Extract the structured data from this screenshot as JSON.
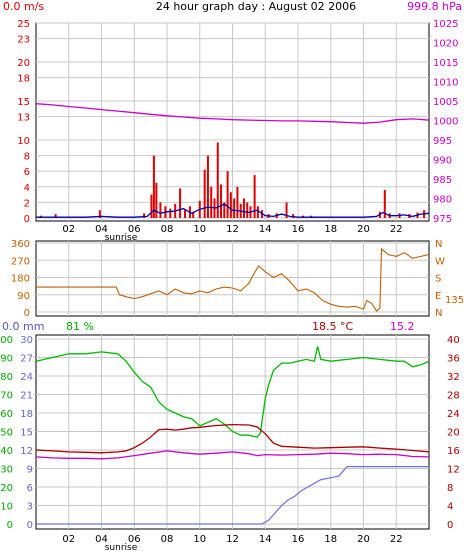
{
  "header": {
    "wind_speed": "0.0 m/s",
    "title": "24 hour graph day : August 02 2006",
    "pressure": "999.8 hPa"
  },
  "panel2": {
    "direction_value": "135",
    "compass": [
      "N",
      "W",
      "S",
      "E",
      "N"
    ]
  },
  "panel3": {
    "rain_label": "0.0 mm",
    "humidity_label": "81 %",
    "temperature_label": "18.5 °C",
    "dewpoint_label": "15.2"
  },
  "x_axis": {
    "ticks": [
      "02",
      "04",
      "06",
      "08",
      "10",
      "12",
      "14",
      "16",
      "18",
      "20",
      "22"
    ],
    "tick_hours": [
      2,
      4,
      6,
      8,
      10,
      12,
      14,
      16,
      18,
      20,
      22
    ],
    "range": [
      0,
      24
    ],
    "sunrise_label": "sunrise",
    "sunrise_hour": 5.6
  },
  "colors": {
    "wind_speed": "#dd0000",
    "wind_avg": "#0000aa",
    "pressure": "#cc00cc",
    "direction": "#c06000",
    "rain": "#7070dd",
    "humidity": "#00bb00",
    "temperature": "#aa0000",
    "dewpoint": "#cc00cc",
    "grid": "#c8c8c8"
  },
  "chart_data": [
    {
      "type": "line",
      "panel": "wind and pressure",
      "y_left_ticks": [
        0,
        2,
        4,
        6,
        8,
        10,
        13,
        15,
        18,
        20,
        23,
        25
      ],
      "y_right_ticks": [
        975,
        980,
        985,
        990,
        995,
        1000,
        1005,
        1010,
        1015,
        1020,
        1025
      ],
      "series": [
        {
          "name": "pressure",
          "axis": "right",
          "x": [
            0,
            1,
            2,
            3,
            4,
            5,
            6,
            7,
            8,
            9,
            10,
            11,
            12,
            13,
            14,
            15,
            16,
            17,
            18,
            19,
            20,
            21,
            22,
            23,
            24
          ],
          "y": [
            1004.3,
            1004.0,
            1003.6,
            1003.2,
            1002.8,
            1002.4,
            1002.0,
            1001.6,
            1001.2,
            1000.9,
            1000.6,
            1000.4,
            1000.2,
            1000.1,
            1000.0,
            999.9,
            999.9,
            999.8,
            999.7,
            999.5,
            999.3,
            999.6,
            1000.2,
            1000.4,
            1000.1
          ]
        },
        {
          "name": "wind gust",
          "axis": "left",
          "bars": [
            [
              0.3,
              0.3
            ],
            [
              1.2,
              0.5
            ],
            [
              3.9,
              1.0
            ],
            [
              6.6,
              0.6
            ],
            [
              7.05,
              3.0
            ],
            [
              7.2,
              8.0
            ],
            [
              7.35,
              4.5
            ],
            [
              7.6,
              2.0
            ],
            [
              7.9,
              1.5
            ],
            [
              8.2,
              1.2
            ],
            [
              8.5,
              1.8
            ],
            [
              8.8,
              3.8
            ],
            [
              9.1,
              1.0
            ],
            [
              9.4,
              1.5
            ],
            [
              9.6,
              0.8
            ],
            [
              10.0,
              2.2
            ],
            [
              10.3,
              6.2
            ],
            [
              10.5,
              8.0
            ],
            [
              10.7,
              4.0
            ],
            [
              10.9,
              2.5
            ],
            [
              11.1,
              9.7
            ],
            [
              11.3,
              4.3
            ],
            [
              11.5,
              2.0
            ],
            [
              11.7,
              6.0
            ],
            [
              11.9,
              3.3
            ],
            [
              12.1,
              2.5
            ],
            [
              12.3,
              4.0
            ],
            [
              12.5,
              1.8
            ],
            [
              12.7,
              2.5
            ],
            [
              12.9,
              2.0
            ],
            [
              13.1,
              1.5
            ],
            [
              13.35,
              5.5
            ],
            [
              13.55,
              1.5
            ],
            [
              13.8,
              1.0
            ],
            [
              14.2,
              0.5
            ],
            [
              14.7,
              0.6
            ],
            [
              15.3,
              2.0
            ],
            [
              15.7,
              0.5
            ],
            [
              16.3,
              0.3
            ],
            [
              16.8,
              0.3
            ],
            [
              21.0,
              0.8
            ],
            [
              21.3,
              3.6
            ],
            [
              21.6,
              0.6
            ],
            [
              22.2,
              0.6
            ],
            [
              22.8,
              0.5
            ],
            [
              23.3,
              0.7
            ],
            [
              23.7,
              1.0
            ]
          ]
        },
        {
          "name": "wind average",
          "axis": "left",
          "x": [
            0,
            1,
            2,
            3,
            4,
            5,
            6,
            6.8,
            7.2,
            7.6,
            8,
            8.5,
            9,
            9.5,
            10,
            10.5,
            11,
            11.5,
            12,
            12.5,
            13,
            13.5,
            14,
            14.5,
            15,
            15.5,
            16,
            17,
            18,
            19,
            20,
            20.8,
            21.2,
            21.6,
            22,
            22.5,
            23,
            23.5,
            24
          ],
          "y": [
            0.1,
            0.1,
            0.1,
            0.1,
            0.2,
            0.1,
            0.1,
            0.2,
            1.0,
            0.6,
            0.8,
            0.9,
            1.2,
            0.6,
            1.1,
            1.4,
            1.3,
            1.8,
            1.0,
            0.9,
            0.7,
            1.0,
            0.3,
            0.2,
            0.5,
            0.2,
            0.1,
            0.1,
            0.1,
            0.1,
            0.1,
            0.2,
            0.7,
            0.3,
            0.3,
            0.4,
            0.2,
            0.5,
            0.6
          ]
        }
      ]
    },
    {
      "type": "line",
      "panel": "wind direction",
      "y_ticks": [
        0,
        90,
        180,
        270,
        360
      ],
      "ylim": [
        0,
        360
      ],
      "series": [
        {
          "name": "direction",
          "x": [
            0,
            1,
            2,
            3,
            4,
            4.9,
            5.1,
            5.5,
            6,
            6.5,
            7,
            7.5,
            8,
            8.5,
            9,
            9.5,
            10,
            10.5,
            11,
            11.5,
            12,
            12.5,
            13,
            13.3,
            13.6,
            14,
            14.5,
            15,
            15.5,
            16,
            16.5,
            17,
            17.5,
            18,
            18.5,
            19,
            19.5,
            20,
            20.2,
            20.5,
            20.8,
            21.0,
            21.1,
            21.5,
            22,
            22.5,
            23,
            23.5,
            24
          ],
          "y": [
            130,
            130,
            130,
            130,
            130,
            130,
            90,
            80,
            70,
            80,
            95,
            110,
            90,
            120,
            100,
            95,
            110,
            100,
            120,
            130,
            125,
            110,
            150,
            200,
            240,
            210,
            180,
            200,
            160,
            110,
            120,
            100,
            60,
            40,
            30,
            25,
            30,
            15,
            60,
            45,
            5,
            20,
            330,
            300,
            290,
            310,
            280,
            290,
            300
          ]
        }
      ]
    },
    {
      "type": "line",
      "panel": "rain, humidity, temperature, dewpoint",
      "y_left_outer_ticks": [
        0,
        10,
        20,
        30,
        40,
        50,
        60,
        70,
        80,
        90,
        100
      ],
      "y_left_inner_ticks": [
        0,
        3,
        6,
        9,
        12,
        15,
        18,
        21,
        24,
        27,
        30
      ],
      "y_right_ticks": [
        0,
        4,
        8,
        12,
        16,
        20,
        24,
        28,
        32,
        36,
        40
      ],
      "series": [
        {
          "name": "rain",
          "axis": "left_inner",
          "x": [
            0,
            13.8,
            14.2,
            14.6,
            15.0,
            15.4,
            15.8,
            16.2,
            16.6,
            17.0,
            17.4,
            18.0,
            18.5,
            19.0,
            20.0,
            21.0,
            22.0,
            23.0,
            24.0
          ],
          "y": [
            0,
            0,
            0.6,
            1.8,
            3.0,
            3.9,
            4.5,
            5.4,
            6.0,
            6.6,
            7.2,
            7.5,
            7.8,
            9.3,
            9.3,
            9.3,
            9.3,
            9.3,
            9.3
          ]
        },
        {
          "name": "humidity",
          "axis": "left_outer",
          "x": [
            0,
            1,
            2,
            3,
            4,
            5,
            5.5,
            6,
            6.5,
            7,
            7.5,
            8,
            8.5,
            9,
            9.5,
            10,
            10.5,
            11,
            11.5,
            12,
            12.5,
            13,
            13.5,
            13.7,
            14.0,
            14.2,
            14.5,
            15,
            15.5,
            16,
            16.5,
            17,
            17.2,
            17.4,
            18,
            19,
            20,
            21,
            22,
            22.5,
            23,
            23.5,
            24
          ],
          "y": [
            88,
            90,
            92,
            92,
            93,
            92,
            88,
            82,
            77,
            74,
            66,
            62,
            60,
            58,
            57,
            53,
            55,
            57,
            54,
            50,
            48,
            48,
            47,
            49,
            68,
            75,
            83,
            87,
            87,
            88,
            89,
            88,
            96,
            89,
            88,
            89,
            90,
            89,
            88,
            88,
            85,
            86,
            88
          ]
        },
        {
          "name": "temperature",
          "axis": "right",
          "x": [
            0,
            1,
            2,
            3,
            4,
            5,
            5.5,
            6,
            6.5,
            7,
            7.5,
            8,
            8.5,
            9,
            9.5,
            10,
            11,
            12,
            13,
            13.5,
            14,
            14.5,
            15,
            16,
            17,
            18,
            19,
            20,
            21,
            22,
            23,
            24
          ],
          "y": [
            16.0,
            15.8,
            15.6,
            15.5,
            15.4,
            15.6,
            15.8,
            16.5,
            17.5,
            18.8,
            20.4,
            20.5,
            20.3,
            20.5,
            20.8,
            20.9,
            21.3,
            21.5,
            21.4,
            21.0,
            19.5,
            17.5,
            16.8,
            16.6,
            16.4,
            16.5,
            16.6,
            16.7,
            16.4,
            16.2,
            15.9,
            15.6
          ]
        },
        {
          "name": "dewpoint",
          "axis": "right",
          "x": [
            0,
            1,
            2,
            3,
            4,
            5,
            6,
            7,
            8,
            9,
            10,
            11,
            12,
            13,
            13.5,
            14,
            15,
            16,
            17,
            18,
            19,
            20,
            21,
            22,
            23,
            24
          ],
          "y": [
            14.5,
            14.3,
            14.2,
            14.2,
            14.1,
            14.3,
            14.8,
            15.3,
            15.8,
            15.4,
            15.1,
            15.3,
            15.6,
            15.2,
            14.8,
            15.0,
            14.9,
            15.0,
            15.1,
            15.3,
            15.2,
            15.0,
            15.1,
            15.0,
            14.6,
            14.5
          ]
        }
      ]
    }
  ]
}
